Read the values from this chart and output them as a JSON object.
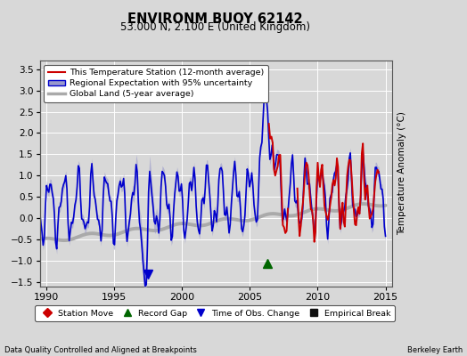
{
  "title": "ENVIRONM BUOY 62142",
  "subtitle": "53.000 N, 2.100 E (United Kingdom)",
  "ylabel": "Temperature Anomaly (°C)",
  "xlabel_left": "Data Quality Controlled and Aligned at Breakpoints",
  "xlabel_right": "Berkeley Earth",
  "ylim": [
    -1.6,
    3.7
  ],
  "xlim": [
    1989.5,
    2015.5
  ],
  "yticks": [
    -1.5,
    -1.0,
    -0.5,
    0.0,
    0.5,
    1.0,
    1.5,
    2.0,
    2.5,
    3.0,
    3.5
  ],
  "xticks": [
    1990,
    1995,
    2000,
    2005,
    2010,
    2015
  ],
  "bg_color": "#d8d8d8",
  "plot_bg_color": "#d8d8d8",
  "regional_color": "#0000cc",
  "regional_fill_color": "#9999cc",
  "station_color": "#cc0000",
  "global_color": "#aaaaaa",
  "legend_items": [
    {
      "label": "This Temperature Station (12-month average)",
      "color": "#cc0000",
      "lw": 1.5
    },
    {
      "label": "Regional Expectation with 95% uncertainty",
      "color": "#0000cc",
      "lw": 1.5
    },
    {
      "label": "Global Land (5-year average)",
      "color": "#aaaaaa",
      "lw": 2.5
    }
  ],
  "marker_items": [
    {
      "label": "Station Move",
      "color": "#cc0000",
      "marker": "D"
    },
    {
      "label": "Record Gap",
      "color": "#006600",
      "marker": "^"
    },
    {
      "label": "Time of Obs. Change",
      "color": "#0000cc",
      "marker": "v"
    },
    {
      "label": "Empirical Break",
      "color": "#111111",
      "marker": "s"
    }
  ],
  "time_of_obs_change_x": 1997.5,
  "record_gap_x": 2006.3,
  "record_gap_y": -1.05
}
